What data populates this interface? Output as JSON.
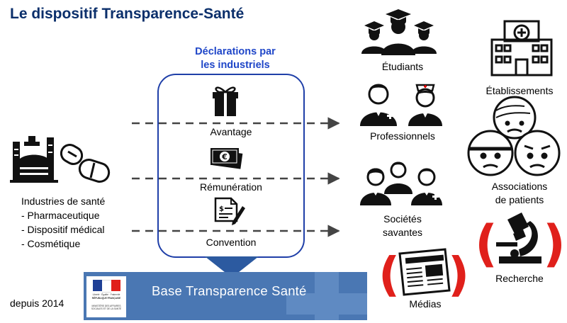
{
  "title": "Le dispositif Transparence-Santé",
  "declarations": {
    "heading_line1": "Déclarations par",
    "heading_line2": "les industriels",
    "items": [
      {
        "label": "Avantage",
        "icon": "gift-icon"
      },
      {
        "label": "Rémunération",
        "icon": "banknote-icon"
      },
      {
        "label": "Convention",
        "icon": "contract-icon"
      }
    ]
  },
  "industries": {
    "heading": "Industries de santé",
    "items": [
      "- Pharmaceutique",
      "- Dispositif médical",
      "- Cosmétique"
    ],
    "icon": "factory-pills-icon"
  },
  "recipients": {
    "students": "Étudiants",
    "professionals": "Professionnels",
    "societies_line1": "Sociétés",
    "societies_line2": "savantes",
    "media": "Médias",
    "establishments": "Établissements",
    "associations_line1": "Associations",
    "associations_line2": "de patients",
    "research": "Recherche"
  },
  "banner": {
    "text": "Base Transparence Santé",
    "gov_motto": "Liberté · Égalité · Fraternité",
    "gov_republic": "RÉPUBLIQUE FRANÇAISE",
    "gov_ministry": "MINISTÈRE DES AFFAIRES SOCIALES ET DE LA SANTÉ"
  },
  "since": "depuis 2014",
  "colors": {
    "title": "#0b2f6b",
    "declarations_heading": "#1f46c8",
    "box_border": "#1f3fa8",
    "banner": "#4a77b3",
    "bracket_red": "#e0201b",
    "arrow_gray": "#444444"
  }
}
